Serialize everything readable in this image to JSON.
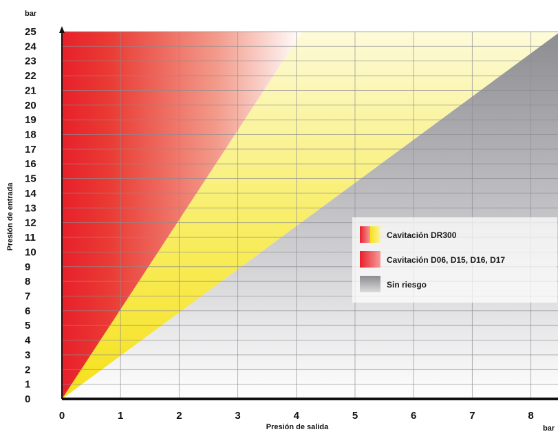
{
  "chart_data": {
    "type": "area",
    "x_unit": "bar",
    "y_unit": "bar",
    "xlabel": "Presión de salida",
    "ylabel": "Presión de entrada",
    "xlim": [
      0,
      8.5
    ],
    "ylim": [
      0,
      25
    ],
    "x_ticks": [
      "0",
      "1",
      "2",
      "3",
      "4",
      "5",
      "6",
      "7",
      "8"
    ],
    "y_ticks": [
      "0",
      "1",
      "2",
      "3",
      "4",
      "5",
      "6",
      "7",
      "8",
      "9",
      "10",
      "11",
      "12",
      "13",
      "14",
      "15",
      "16",
      "17",
      "18",
      "19",
      "20",
      "21",
      "22",
      "23",
      "24",
      "25"
    ],
    "grid": true,
    "regions": [
      {
        "name": "Cavitación D06, D15, D16, D17",
        "color": "#e8202a",
        "boundary": [
          [
            0,
            0
          ],
          [
            4.1,
            25
          ]
        ]
      },
      {
        "name": "Cavitación DR300",
        "color": "#f6e832",
        "boundary": [
          [
            0,
            0
          ],
          [
            8.5,
            25
          ]
        ]
      },
      {
        "name": "Sin riesgo",
        "color": "#8c8c91",
        "boundary": [
          [
            0,
            0
          ],
          [
            8.5,
            25
          ]
        ]
      }
    ],
    "boundaries": [
      {
        "points": [
          [
            0,
            0
          ],
          [
            4.1,
            25
          ]
        ]
      },
      {
        "points": [
          [
            0,
            0
          ],
          [
            8.5,
            25
          ]
        ]
      }
    ],
    "legend": {
      "position": "center-right",
      "items": [
        {
          "label": "Cavitación DR300",
          "swatch": "red-yellow"
        },
        {
          "label": "Cavitación D06, D15, D16, D17",
          "swatch": "red"
        },
        {
          "label": "Sin riesgo",
          "swatch": "grey"
        }
      ]
    }
  }
}
